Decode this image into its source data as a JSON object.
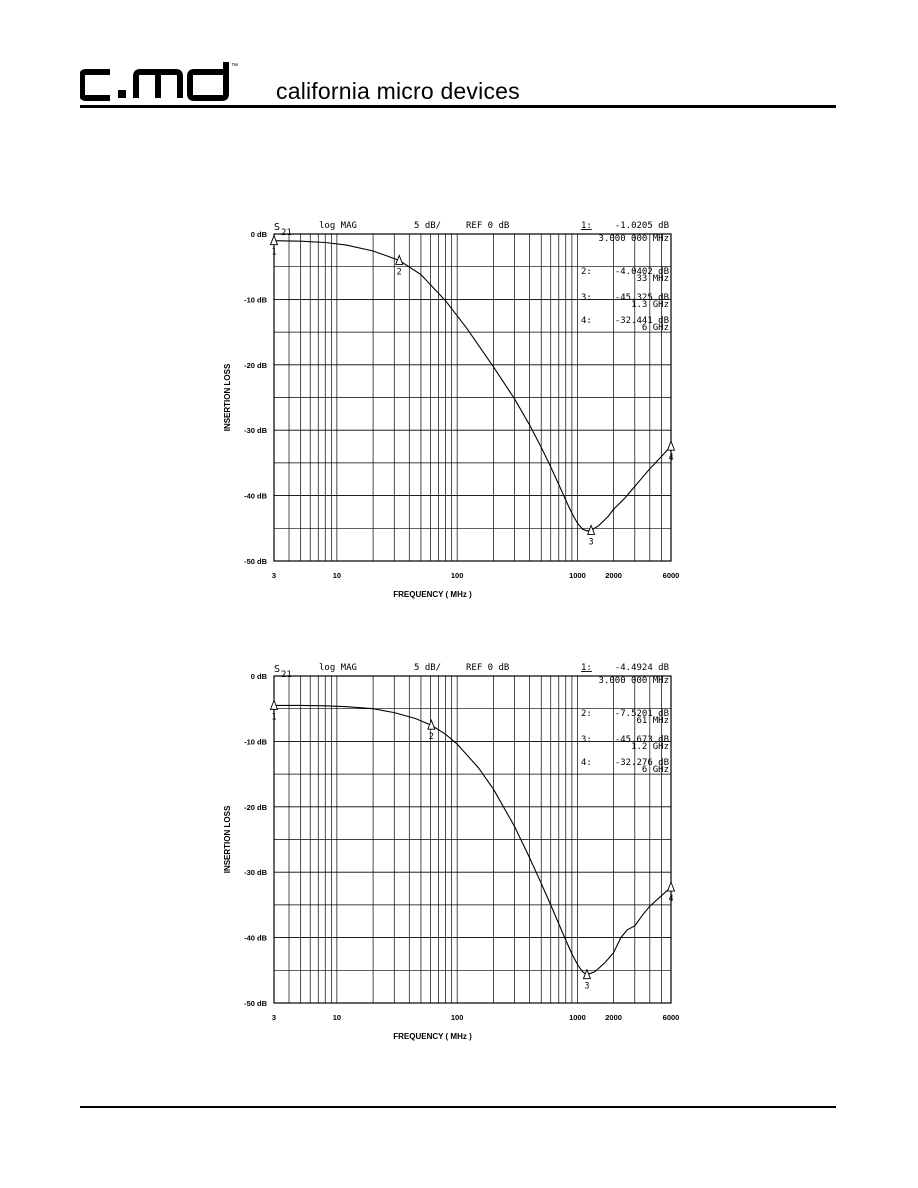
{
  "header": {
    "logo_text": "c.md",
    "trademark": "™",
    "company": "california micro devices"
  },
  "chart_data": [
    {
      "type": "line",
      "instrument_header": {
        "param": "S",
        "param_sub": "21",
        "format": "log MAG",
        "scale": "5 dB/",
        "ref": "REF 0 dB"
      },
      "ylabel": "INSERTION LOSS",
      "xlabel": "FREQUENCY ( MHz )",
      "x_scale": "log",
      "xlim": [
        3,
        6000
      ],
      "ylim": [
        -50,
        0
      ],
      "x_ticks": [
        3,
        10,
        100,
        1000,
        2000,
        6000
      ],
      "x_tick_labels": [
        "3",
        "10",
        "100",
        "1000",
        "2000",
        "6000"
      ],
      "y_ticks": [
        0,
        -10,
        -20,
        -30,
        -40,
        -50
      ],
      "y_tick_labels": [
        "0 dB",
        "-10 dB",
        "-20 dB",
        "-30 dB",
        "-40 dB",
        "-50 dB"
      ],
      "grid": true,
      "marker_readouts": [
        {
          "label": "1:",
          "value": "-1.0205 dB",
          "freq": "3.000 000 MHz"
        },
        {
          "label": "2:",
          "value": "-4.0402 dB",
          "freq": "33 MHz"
        },
        {
          "label": "3:",
          "value": "-45.325 dB",
          "freq": "1.3 GHz"
        },
        {
          "label": "4:",
          "value": "-32.441 dB",
          "freq": "6 GHz"
        }
      ],
      "markers": [
        {
          "id": "1",
          "x": 3,
          "y": -1.02
        },
        {
          "id": "2",
          "x": 33,
          "y": -4.04
        },
        {
          "id": "3",
          "x": 1300,
          "y": -45.33
        },
        {
          "id": "4",
          "x": 6000,
          "y": -32.44
        }
      ],
      "series": [
        {
          "x": [
            3,
            5,
            8,
            12,
            20,
            33,
            50,
            80,
            120,
            200,
            300,
            400,
            500,
            600,
            700,
            800,
            900,
            1000,
            1100,
            1200,
            1300,
            1500,
            1800,
            2000,
            2500,
            3000,
            4000,
            5000,
            6000
          ],
          "y": [
            -1.02,
            -1.1,
            -1.3,
            -1.7,
            -2.6,
            -4.04,
            -6.2,
            -10.2,
            -14.4,
            -20.3,
            -25.2,
            -29.2,
            -32.6,
            -35.6,
            -38.3,
            -40.7,
            -42.7,
            -44.2,
            -45.1,
            -45.4,
            -45.3,
            -44.6,
            -43.2,
            -42.1,
            -40.3,
            -38.6,
            -35.9,
            -34.0,
            -32.44
          ]
        }
      ]
    },
    {
      "type": "line",
      "instrument_header": {
        "param": "S",
        "param_sub": "21",
        "format": "log MAG",
        "scale": "5 dB/",
        "ref": "REF 0 dB"
      },
      "ylabel": "INSERTION LOSS",
      "xlabel": "FREQUENCY ( MHz )",
      "x_scale": "log",
      "xlim": [
        3,
        6000
      ],
      "ylim": [
        -50,
        0
      ],
      "x_ticks": [
        3,
        10,
        100,
        1000,
        2000,
        6000
      ],
      "x_tick_labels": [
        "3",
        "10",
        "100",
        "1000",
        "2000",
        "6000"
      ],
      "y_ticks": [
        0,
        -10,
        -20,
        -30,
        -40,
        -50
      ],
      "y_tick_labels": [
        "0 dB",
        "-10 dB",
        "-20 dB",
        "-30 dB",
        "-40 dB",
        "-50 dB"
      ],
      "grid": true,
      "marker_readouts": [
        {
          "label": "1:",
          "value": "-4.4924 dB",
          "freq": "3.000 000 MHz"
        },
        {
          "label": "2:",
          "value": "-7.5201 dB",
          "freq": "61 MHz"
        },
        {
          "label": "3:",
          "value": "-45.673 dB",
          "freq": "1.2 GHz"
        },
        {
          "label": "4:",
          "value": "-32.276 dB",
          "freq": "6 GHz"
        }
      ],
      "markers": [
        {
          "id": "1",
          "x": 3,
          "y": -4.49
        },
        {
          "id": "2",
          "x": 61,
          "y": -7.52
        },
        {
          "id": "3",
          "x": 1200,
          "y": -45.67
        },
        {
          "id": "4",
          "x": 6000,
          "y": -32.28
        }
      ],
      "series": [
        {
          "x": [
            3,
            5,
            8,
            12,
            20,
            30,
            45,
            61,
            80,
            100,
            150,
            200,
            300,
            400,
            500,
            600,
            700,
            800,
            900,
            1000,
            1100,
            1200,
            1400,
            1700,
            2000,
            2300,
            2600,
            3000,
            3500,
            4000,
            5000,
            6000
          ],
          "y": [
            -4.49,
            -4.5,
            -4.55,
            -4.7,
            -5.0,
            -5.6,
            -6.5,
            -7.52,
            -8.9,
            -10.4,
            -14.0,
            -17.3,
            -23.0,
            -27.8,
            -31.7,
            -35.0,
            -37.9,
            -40.4,
            -42.5,
            -44.1,
            -45.2,
            -45.67,
            -45.2,
            -43.8,
            -42.3,
            -40.0,
            -38.8,
            -38.2,
            -36.5,
            -35.2,
            -33.6,
            -32.28
          ]
        }
      ]
    }
  ]
}
